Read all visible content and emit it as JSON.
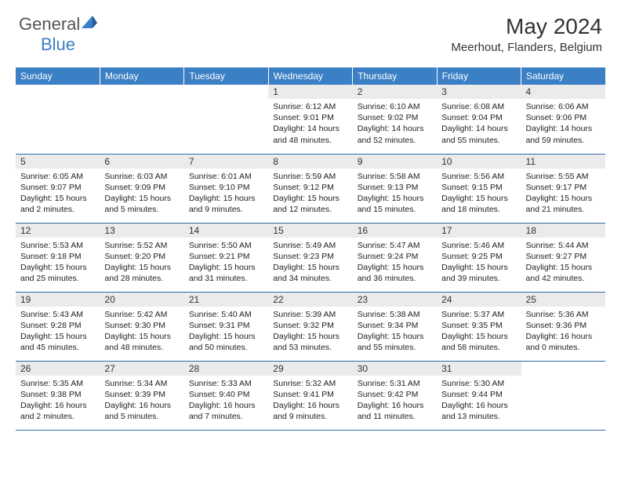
{
  "logo": {
    "word1": "General",
    "word2": "Blue"
  },
  "title": "May 2024",
  "location": "Meerhout, Flanders, Belgium",
  "colors": {
    "header_bg": "#3b7fc4",
    "daynum_bg": "#ebebeb",
    "row_border": "#2f6aa8",
    "text": "#222222",
    "logo_gray": "#555555",
    "logo_blue": "#3b7fc4"
  },
  "day_headers": [
    "Sunday",
    "Monday",
    "Tuesday",
    "Wednesday",
    "Thursday",
    "Friday",
    "Saturday"
  ],
  "weeks": [
    [
      null,
      null,
      null,
      {
        "n": "1",
        "sr": "6:12 AM",
        "ss": "9:01 PM",
        "dl": "14 hours and 48 minutes."
      },
      {
        "n": "2",
        "sr": "6:10 AM",
        "ss": "9:02 PM",
        "dl": "14 hours and 52 minutes."
      },
      {
        "n": "3",
        "sr": "6:08 AM",
        "ss": "9:04 PM",
        "dl": "14 hours and 55 minutes."
      },
      {
        "n": "4",
        "sr": "6:06 AM",
        "ss": "9:06 PM",
        "dl": "14 hours and 59 minutes."
      }
    ],
    [
      {
        "n": "5",
        "sr": "6:05 AM",
        "ss": "9:07 PM",
        "dl": "15 hours and 2 minutes."
      },
      {
        "n": "6",
        "sr": "6:03 AM",
        "ss": "9:09 PM",
        "dl": "15 hours and 5 minutes."
      },
      {
        "n": "7",
        "sr": "6:01 AM",
        "ss": "9:10 PM",
        "dl": "15 hours and 9 minutes."
      },
      {
        "n": "8",
        "sr": "5:59 AM",
        "ss": "9:12 PM",
        "dl": "15 hours and 12 minutes."
      },
      {
        "n": "9",
        "sr": "5:58 AM",
        "ss": "9:13 PM",
        "dl": "15 hours and 15 minutes."
      },
      {
        "n": "10",
        "sr": "5:56 AM",
        "ss": "9:15 PM",
        "dl": "15 hours and 18 minutes."
      },
      {
        "n": "11",
        "sr": "5:55 AM",
        "ss": "9:17 PM",
        "dl": "15 hours and 21 minutes."
      }
    ],
    [
      {
        "n": "12",
        "sr": "5:53 AM",
        "ss": "9:18 PM",
        "dl": "15 hours and 25 minutes."
      },
      {
        "n": "13",
        "sr": "5:52 AM",
        "ss": "9:20 PM",
        "dl": "15 hours and 28 minutes."
      },
      {
        "n": "14",
        "sr": "5:50 AM",
        "ss": "9:21 PM",
        "dl": "15 hours and 31 minutes."
      },
      {
        "n": "15",
        "sr": "5:49 AM",
        "ss": "9:23 PM",
        "dl": "15 hours and 34 minutes."
      },
      {
        "n": "16",
        "sr": "5:47 AM",
        "ss": "9:24 PM",
        "dl": "15 hours and 36 minutes."
      },
      {
        "n": "17",
        "sr": "5:46 AM",
        "ss": "9:25 PM",
        "dl": "15 hours and 39 minutes."
      },
      {
        "n": "18",
        "sr": "5:44 AM",
        "ss": "9:27 PM",
        "dl": "15 hours and 42 minutes."
      }
    ],
    [
      {
        "n": "19",
        "sr": "5:43 AM",
        "ss": "9:28 PM",
        "dl": "15 hours and 45 minutes."
      },
      {
        "n": "20",
        "sr": "5:42 AM",
        "ss": "9:30 PM",
        "dl": "15 hours and 48 minutes."
      },
      {
        "n": "21",
        "sr": "5:40 AM",
        "ss": "9:31 PM",
        "dl": "15 hours and 50 minutes."
      },
      {
        "n": "22",
        "sr": "5:39 AM",
        "ss": "9:32 PM",
        "dl": "15 hours and 53 minutes."
      },
      {
        "n": "23",
        "sr": "5:38 AM",
        "ss": "9:34 PM",
        "dl": "15 hours and 55 minutes."
      },
      {
        "n": "24",
        "sr": "5:37 AM",
        "ss": "9:35 PM",
        "dl": "15 hours and 58 minutes."
      },
      {
        "n": "25",
        "sr": "5:36 AM",
        "ss": "9:36 PM",
        "dl": "16 hours and 0 minutes."
      }
    ],
    [
      {
        "n": "26",
        "sr": "5:35 AM",
        "ss": "9:38 PM",
        "dl": "16 hours and 2 minutes."
      },
      {
        "n": "27",
        "sr": "5:34 AM",
        "ss": "9:39 PM",
        "dl": "16 hours and 5 minutes."
      },
      {
        "n": "28",
        "sr": "5:33 AM",
        "ss": "9:40 PM",
        "dl": "16 hours and 7 minutes."
      },
      {
        "n": "29",
        "sr": "5:32 AM",
        "ss": "9:41 PM",
        "dl": "16 hours and 9 minutes."
      },
      {
        "n": "30",
        "sr": "5:31 AM",
        "ss": "9:42 PM",
        "dl": "16 hours and 11 minutes."
      },
      {
        "n": "31",
        "sr": "5:30 AM",
        "ss": "9:44 PM",
        "dl": "16 hours and 13 minutes."
      },
      null
    ]
  ],
  "labels": {
    "sunrise": "Sunrise:",
    "sunset": "Sunset:",
    "daylight": "Daylight:"
  }
}
